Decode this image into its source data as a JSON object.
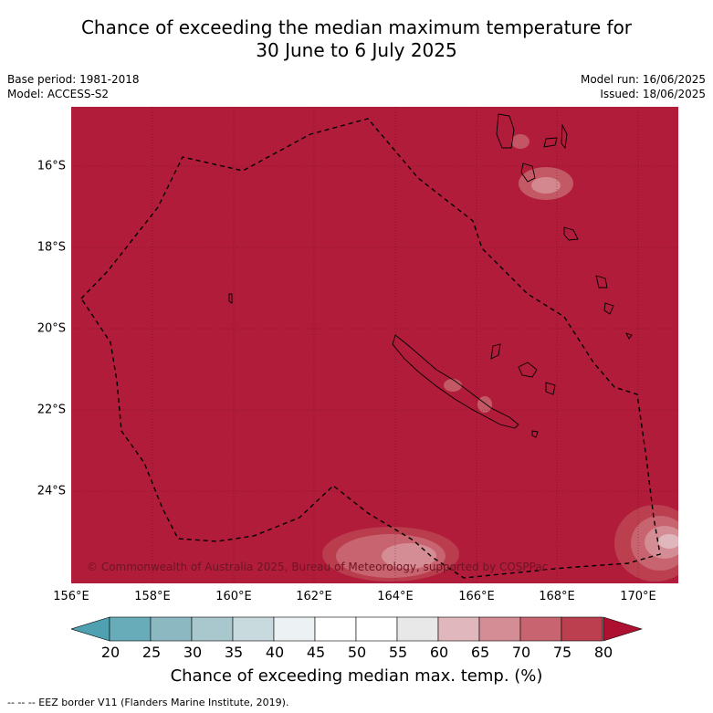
{
  "title_line1": "Chance of exceeding the median maximum temperature for",
  "title_line2": "30 June to 6 July 2025",
  "meta": {
    "base_period": "Base period: 1981-2018",
    "model": "Model: ACCESS-S2",
    "model_run": "Model run: 16/06/2025",
    "issued": "Issued: 18/06/2025"
  },
  "map": {
    "background_color": "#b11c3a",
    "latitude_labels": [
      "16°S",
      "18°S",
      "20°S",
      "22°S",
      "24°S"
    ],
    "longitude_labels": [
      "156°E",
      "158°E",
      "160°E",
      "162°E",
      "164°E",
      "166°E",
      "168°E",
      "170°E"
    ],
    "copyright": "© Commonwealth of Australia 2025, Bureau of Meteorology, supported by COSPPac"
  },
  "colorbar": {
    "ticks": [
      "20",
      "25",
      "30",
      "35",
      "40",
      "45",
      "50",
      "55",
      "60",
      "65",
      "70",
      "75",
      "80"
    ],
    "colors": [
      "#68acb9",
      "#8cb8c2",
      "#a9c8cd",
      "#c8dadd",
      "#ecf2f3",
      "#ffffff",
      "#ffffff",
      "#e8e8e8",
      "#e0b7bc",
      "#d58d95",
      "#c8646f",
      "#bb3f4f"
    ],
    "under_color": "#4fa0b0",
    "over_color": "#ad1030",
    "title": "Chance of exceeding median max. temp. (%)"
  },
  "footnote": "--  --  -- EEZ border V11 (Flanders Marine Institute, 2019)."
}
